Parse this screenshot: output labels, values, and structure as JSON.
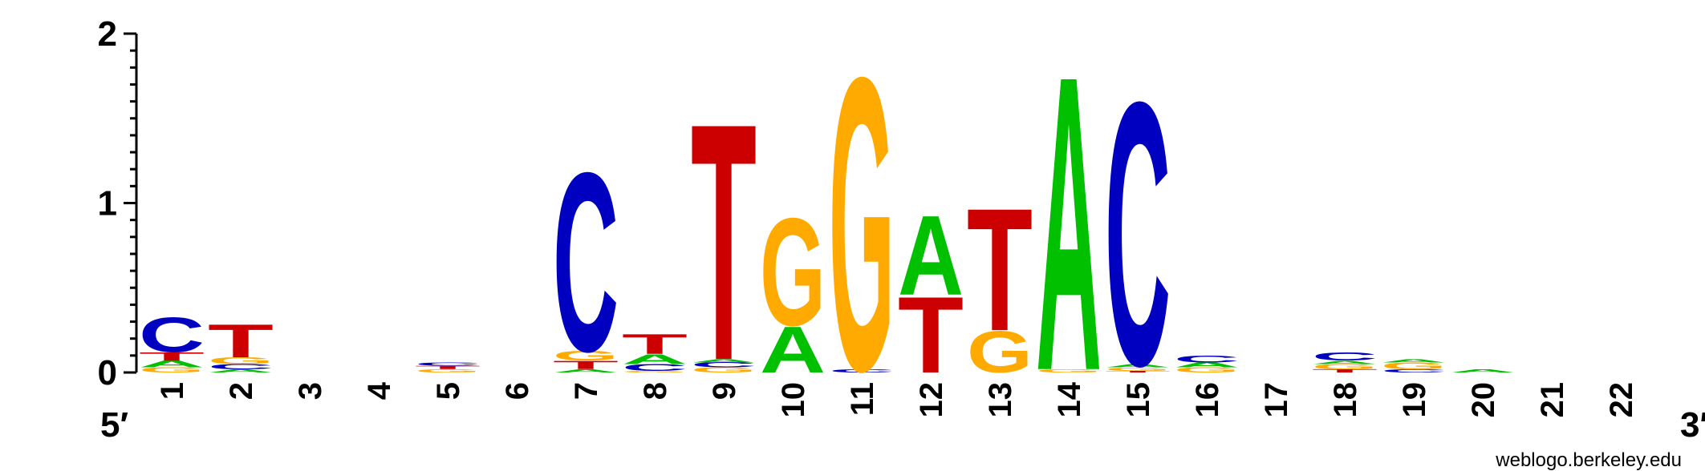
{
  "chart_data": {
    "type": "sequence-logo",
    "ylim": [
      0,
      2
    ],
    "y_ticks": [
      "0",
      "1",
      "2"
    ],
    "five_prime": "5′",
    "three_prime": "3′",
    "credit": "weblogo.berkeley.edu",
    "colors": {
      "A": "#00c000",
      "C": "#0000c0",
      "G": "#ffaa00",
      "T": "#cc0000"
    },
    "positions": [
      {
        "label": "1",
        "stack": [
          [
            "G",
            0.03
          ],
          [
            "A",
            0.04
          ],
          [
            "T",
            0.05
          ],
          [
            "C",
            0.21
          ]
        ]
      },
      {
        "label": "2",
        "stack": [
          [
            "A",
            0.02
          ],
          [
            "C",
            0.03
          ],
          [
            "G",
            0.04
          ],
          [
            "T",
            0.2
          ]
        ]
      },
      {
        "label": "3",
        "stack": []
      },
      {
        "label": "4",
        "stack": []
      },
      {
        "label": "5",
        "stack": [
          [
            "G",
            0.02
          ],
          [
            "T",
            0.02
          ],
          [
            "C",
            0.02
          ]
        ]
      },
      {
        "label": "6",
        "stack": []
      },
      {
        "label": "7",
        "stack": [
          [
            "A",
            0.02
          ],
          [
            "T",
            0.05
          ],
          [
            "G",
            0.06
          ],
          [
            "C",
            1.08
          ]
        ]
      },
      {
        "label": "8",
        "stack": [
          [
            "G",
            0.01
          ],
          [
            "C",
            0.04
          ],
          [
            "A",
            0.06
          ],
          [
            "T",
            0.12
          ]
        ]
      },
      {
        "label": "9",
        "stack": [
          [
            "G",
            0.03
          ],
          [
            "C",
            0.03
          ],
          [
            "A",
            0.02
          ],
          [
            "T",
            1.43
          ]
        ]
      },
      {
        "label": "10",
        "stack": [
          [
            "A",
            0.28
          ],
          [
            "G",
            0.65
          ]
        ]
      },
      {
        "label": "11",
        "stack": [
          [
            "C",
            0.02
          ],
          [
            "G",
            1.77
          ]
        ]
      },
      {
        "label": "12",
        "stack": [
          [
            "T",
            0.46
          ],
          [
            "A",
            0.48
          ]
        ]
      },
      {
        "label": "13",
        "stack": [
          [
            "G",
            0.25
          ],
          [
            "T",
            0.74
          ]
        ]
      },
      {
        "label": "14",
        "stack": [
          [
            "G",
            0.02
          ],
          [
            "A",
            1.78
          ]
        ]
      },
      {
        "label": "15",
        "stack": [
          [
            "T",
            0.01
          ],
          [
            "G",
            0.02
          ],
          [
            "A",
            0.02
          ],
          [
            "C",
            1.59
          ]
        ]
      },
      {
        "label": "16",
        "stack": [
          [
            "G",
            0.03
          ],
          [
            "A",
            0.03
          ],
          [
            "C",
            0.04
          ]
        ]
      },
      {
        "label": "17",
        "stack": []
      },
      {
        "label": "18",
        "stack": [
          [
            "T",
            0.02
          ],
          [
            "G",
            0.03
          ],
          [
            "A",
            0.02
          ],
          [
            "C",
            0.05
          ]
        ]
      },
      {
        "label": "19",
        "stack": [
          [
            "C",
            0.02
          ],
          [
            "G",
            0.04
          ],
          [
            "A",
            0.02
          ]
        ]
      },
      {
        "label": "20",
        "stack": [
          [
            "A",
            0.02
          ]
        ]
      },
      {
        "label": "21",
        "stack": []
      },
      {
        "label": "22",
        "stack": []
      }
    ]
  }
}
